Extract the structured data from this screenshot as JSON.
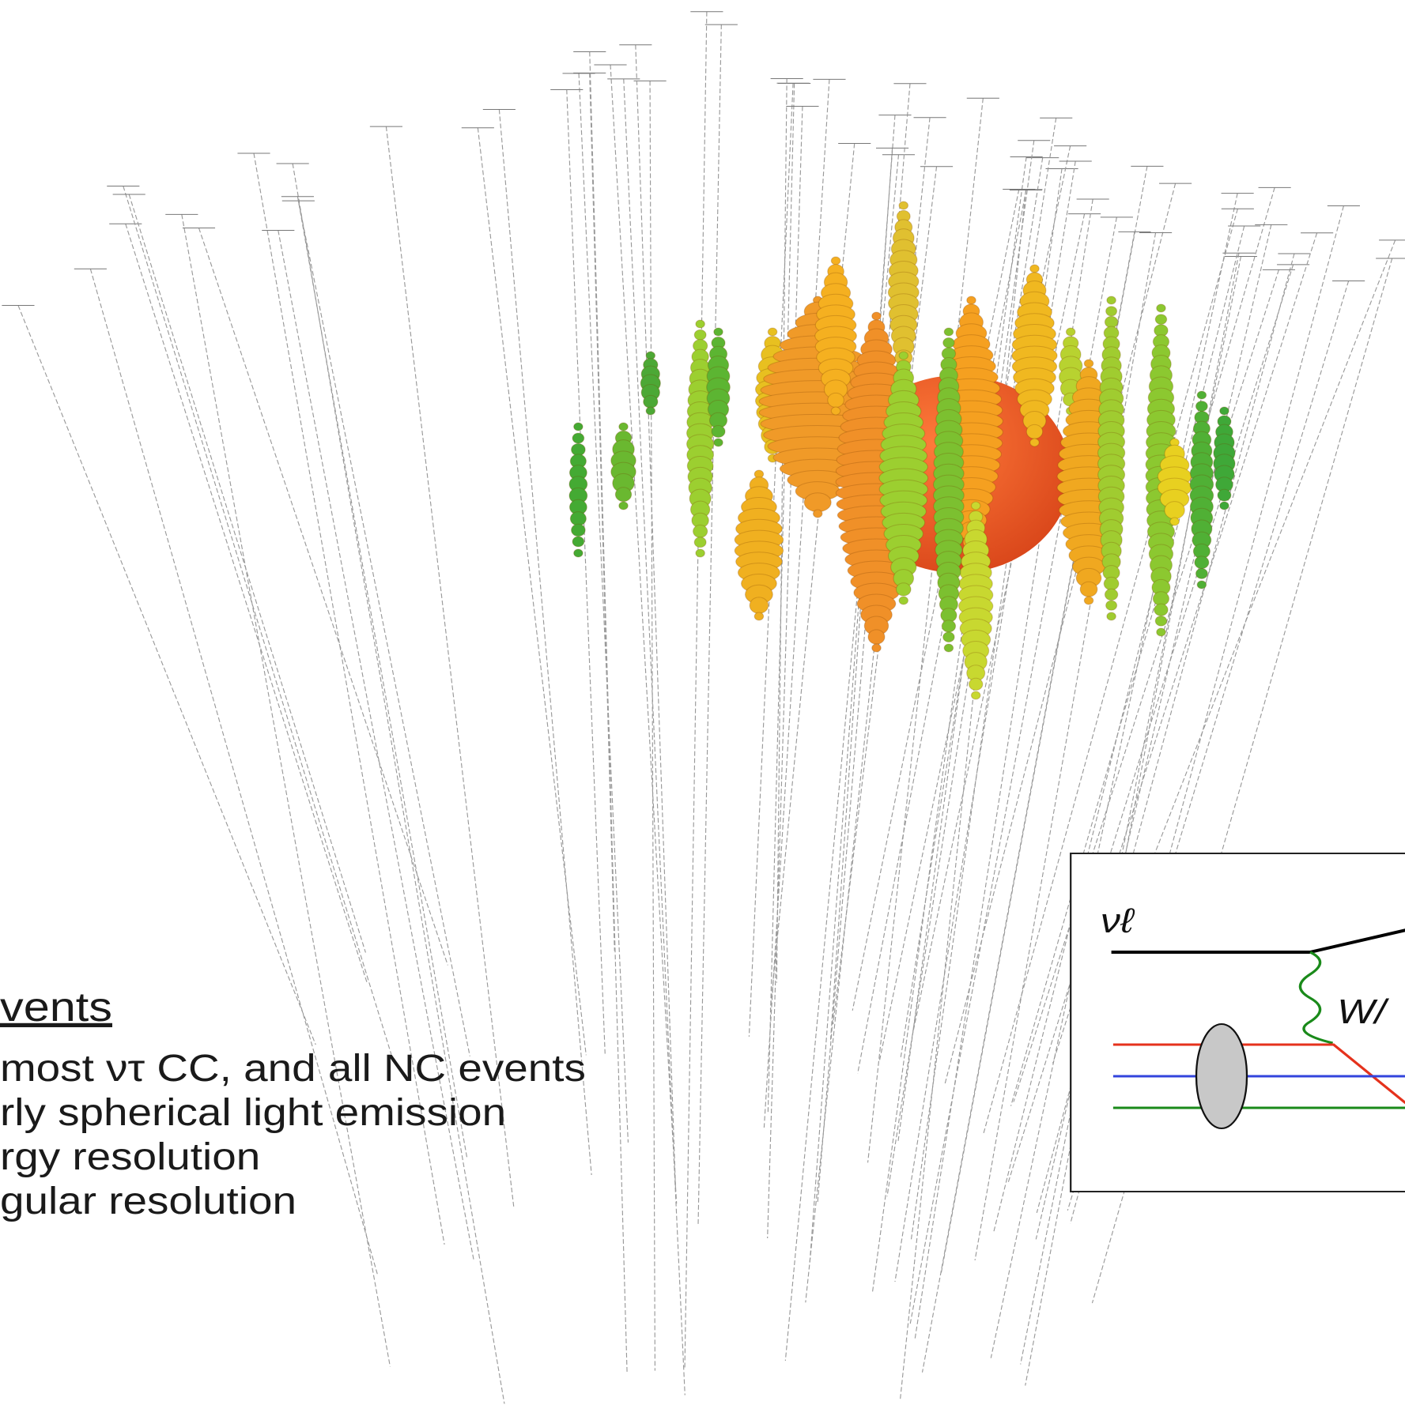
{
  "slide": {
    "heading": "vents",
    "bullets": [
      "most ντ CC, and all NC events",
      "rly spherical light emission",
      "rgy resolution",
      "gular resolution"
    ],
    "diagram": {
      "neutrino_label": "νℓ",
      "boson_label": "W/"
    }
  }
}
